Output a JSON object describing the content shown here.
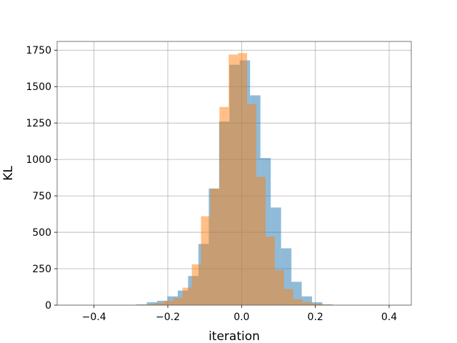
{
  "chart_data": {
    "type": "bar",
    "title": "",
    "xlabel": "iteration",
    "ylabel": "KL",
    "xlim": [
      -0.5,
      0.46
    ],
    "ylim": [
      0,
      1810
    ],
    "grid": true,
    "x_ticks": [
      -0.4,
      -0.2,
      0.0,
      0.2,
      0.4
    ],
    "x_tick_labels": [
      "−0.4",
      "−0.2",
      "0.0",
      "0.2",
      "0.4"
    ],
    "y_ticks": [
      0,
      250,
      500,
      750,
      1000,
      1250,
      1500,
      1750
    ],
    "y_tick_labels": [
      "0",
      "250",
      "500",
      "750",
      "1000",
      "1250",
      "1500",
      "1750"
    ],
    "series": [
      {
        "color": "#1f77b4",
        "opacity": 0.5,
        "bin_edges": [
          -0.285,
          -0.257,
          -0.229,
          -0.201,
          -0.173,
          -0.145,
          -0.117,
          -0.089,
          -0.061,
          -0.033,
          -0.005,
          0.023,
          0.051,
          0.079,
          0.107,
          0.135,
          0.163,
          0.191,
          0.219,
          0.247
        ],
        "counts": [
          5,
          20,
          30,
          60,
          100,
          200,
          420,
          800,
          1260,
          1650,
          1680,
          1440,
          1010,
          670,
          390,
          160,
          60,
          20,
          5
        ]
      },
      {
        "color": "#ff7f0e",
        "opacity": 0.5,
        "bin_edges": [
          -0.26,
          -0.235,
          -0.21,
          -0.185,
          -0.16,
          -0.135,
          -0.11,
          -0.085,
          -0.06,
          -0.035,
          -0.01,
          0.015,
          0.04,
          0.065,
          0.09,
          0.115,
          0.14,
          0.165,
          0.19,
          0.215,
          0.24
        ],
        "counts": [
          5,
          15,
          30,
          50,
          120,
          280,
          610,
          800,
          1360,
          1720,
          1730,
          1380,
          880,
          470,
          240,
          110,
          40,
          20,
          10,
          5
        ]
      }
    ]
  }
}
